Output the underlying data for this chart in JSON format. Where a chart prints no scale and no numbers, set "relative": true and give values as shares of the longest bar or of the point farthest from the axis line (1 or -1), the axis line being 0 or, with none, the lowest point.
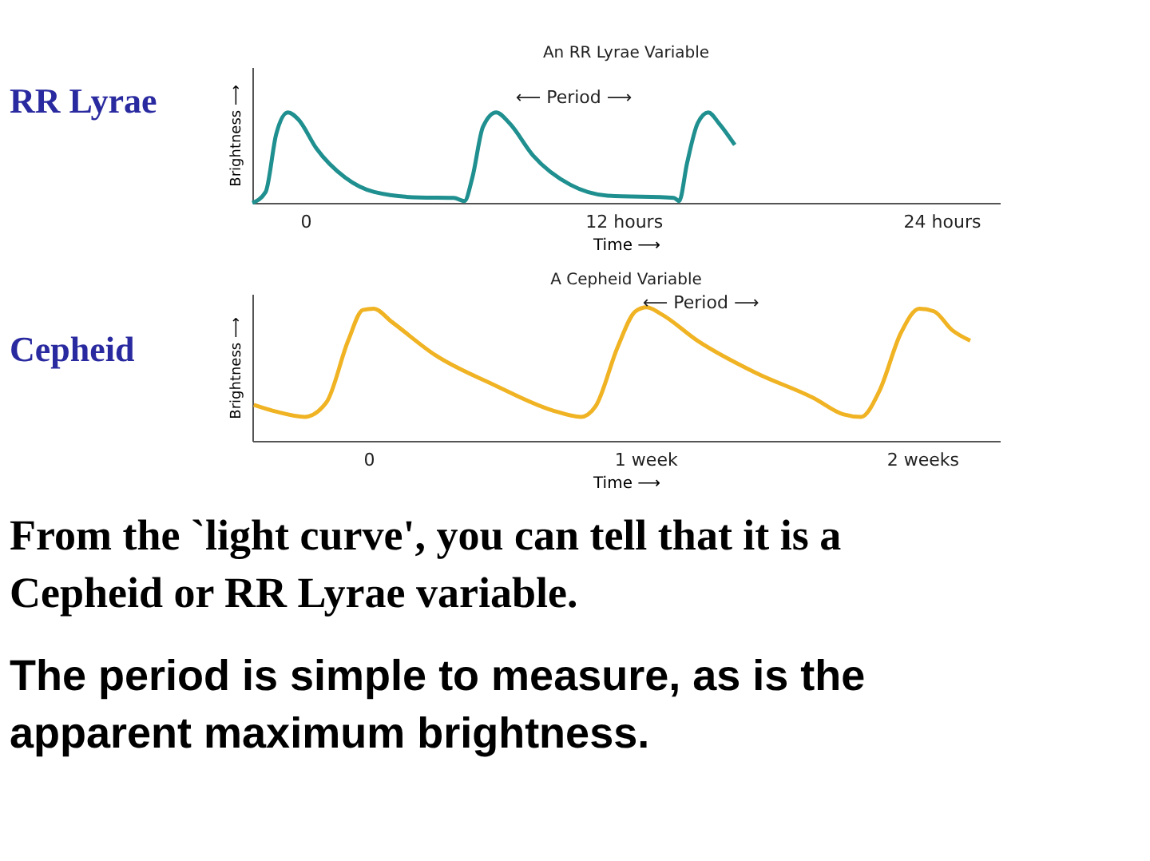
{
  "chart_data": [
    {
      "type": "line",
      "title": "An RR Lyrae Variable",
      "xlabel": "Time ⟶",
      "ylabel": "Brightness ⟶",
      "relative": true,
      "xlim": [
        -2.0,
        26.2
      ],
      "xticks": [
        0,
        {
          "value": 12,
          "label": "12 hours"
        },
        {
          "value": 24,
          "label": "24 hours"
        }
      ],
      "grid": false,
      "annotations": [
        "RR Lyrae",
        "⟵ Period ⟶"
      ],
      "series": [
        {
          "color": "#1f8f8f",
          "x": [
            -2.0,
            -1.5,
            -1.1,
            -0.66,
            -0.26,
            0.42,
            1.5,
            2.6,
            4.3,
            5.6,
            6.0,
            6.3,
            6.7,
            7.2,
            7.7,
            8.6,
            10.0,
            11.4,
            13.9,
            14.1,
            14.4,
            14.8,
            15.2,
            15.6,
            16.2
          ],
          "values": [
            0.0,
            0.12,
            0.76,
            1.0,
            0.92,
            0.6,
            0.28,
            0.12,
            0.06,
            0.056,
            0.02,
            0.28,
            0.84,
            1.0,
            0.88,
            0.52,
            0.2,
            0.08,
            0.056,
            0.02,
            0.44,
            0.88,
            1.0,
            0.88,
            0.64
          ]
        }
      ]
    },
    {
      "type": "line",
      "title": "A Cepheid Variable",
      "xlabel": "Time ⟶",
      "ylabel": "Brightness ⟶",
      "relative": true,
      "xlim": [
        -0.42,
        2.28
      ],
      "xticks": [
        0,
        {
          "value": 1,
          "label": "1 week"
        },
        {
          "value": 2,
          "label": "2 weeks"
        }
      ],
      "grid": false,
      "annotations": [
        "Cepheid",
        "⟵ Period ⟶",
        "From the `light curve', you can tell that it is a Cepheid or RR Lyrae variable.",
        "The period is simple to measure, as is the apparent maximum brightness."
      ],
      "series": [
        {
          "color": "#f0b323",
          "x": [
            -0.415,
            -0.336,
            -0.231,
            -0.152,
            -0.074,
            -0.021,
            0.018,
            0.084,
            0.242,
            0.452,
            0.662,
            0.767,
            0.82,
            0.899,
            0.964,
            1.004,
            1.056,
            1.188,
            1.398,
            1.608,
            1.713,
            1.779,
            1.844,
            1.923,
            1.989,
            2.042,
            2.107,
            2.173
          ],
          "values": [
            0.27,
            0.22,
            0.18,
            0.29,
            0.75,
            0.98,
            0.99,
            0.89,
            0.64,
            0.42,
            0.23,
            0.18,
            0.26,
            0.7,
            0.97,
            1.0,
            0.95,
            0.75,
            0.51,
            0.32,
            0.2,
            0.18,
            0.37,
            0.81,
            0.99,
            0.97,
            0.83,
            0.75
          ]
        }
      ]
    }
  ]
}
